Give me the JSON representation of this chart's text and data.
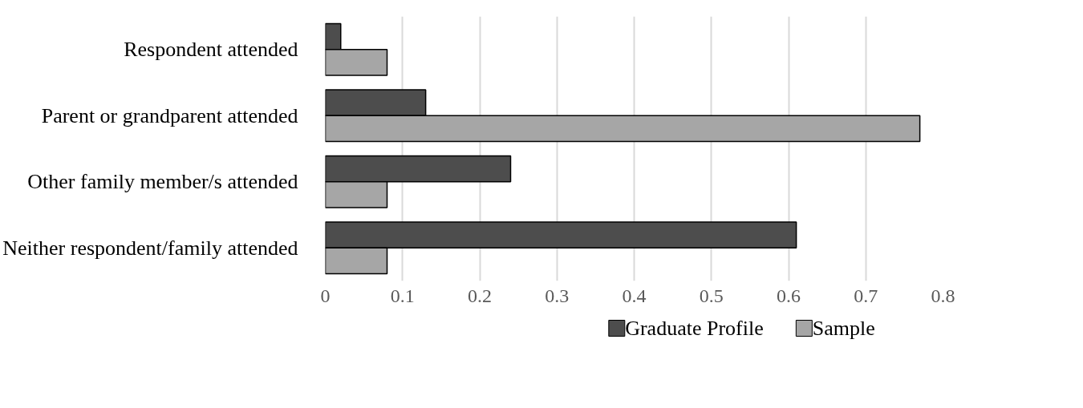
{
  "chart_data": {
    "type": "bar",
    "orientation": "horizontal",
    "categories": [
      "Respondent attended",
      "Parent or grandparent attended",
      "Other family member/s attended",
      "Neither respondent/family attended"
    ],
    "series": [
      {
        "name": "Graduate Profile",
        "color": "#4d4d4d",
        "values": [
          0.02,
          0.13,
          0.24,
          0.61
        ]
      },
      {
        "name": "Sample",
        "color": "#a6a6a6",
        "values": [
          0.08,
          0.77,
          0.08,
          0.08
        ]
      }
    ],
    "xlim": [
      0,
      0.8
    ],
    "xticks": [
      0,
      0.1,
      0.2,
      0.3,
      0.4,
      0.5,
      0.6,
      0.7,
      0.8
    ],
    "grid": "x",
    "legend": "bottom"
  }
}
